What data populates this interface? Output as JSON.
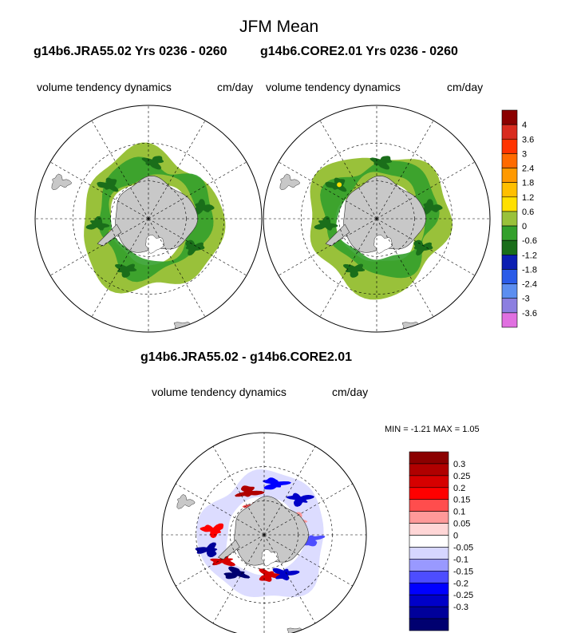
{
  "title": "JFM Mean",
  "left_case": "g14b6.JRA55.02  Yrs 0236 - 0260",
  "right_case": "g14b6.CORE2.01  Yrs 0236 - 0260",
  "panel_variable": "volume tendency dynamics",
  "panel_units": "cm/day",
  "diff_title": "g14b6.JRA55.02 - g14b6.CORE2.01",
  "diff_variable": "volume tendency dynamics",
  "diff_units": "cm/day",
  "diff_minmax": "MIN =  -1.21 MAX =   1.05",
  "colors": {
    "land": "#c8c8c8",
    "ocean": "#ffffff"
  },
  "chart_data": [
    {
      "type": "heatmap",
      "projection": "south-polar-stereographic",
      "name": "g14b6.JRA55.02 Yrs 0236 - 0260",
      "variable": "volume tendency dynamics",
      "units": "cm/day",
      "colorbar": {
        "labels": [
          "4",
          "3.6",
          "3",
          "2.4",
          "1.8",
          "1.2",
          "0.6",
          "0",
          "-0.6",
          "-1.2",
          "-1.8",
          "-2.4",
          "-3",
          "-3.6"
        ],
        "colors": [
          "#8b0000",
          "#d92b1e",
          "#ff3300",
          "#ff6a00",
          "#ff9900",
          "#ffbf00",
          "#ffe000",
          "#99c13a",
          "#33a02c",
          "#1a6e1a",
          "#0c1fb2",
          "#2a5be8",
          "#5c8ef0",
          "#8c7fe0",
          "#e070e0"
        ]
      },
      "dominant_values": "0 to -1.2 around the Antarctic coast and sea-ice edge, locally small positive values"
    },
    {
      "type": "heatmap",
      "projection": "south-polar-stereographic",
      "name": "g14b6.CORE2.01 Yrs 0236 - 0260",
      "variable": "volume tendency dynamics",
      "units": "cm/day",
      "colorbar_shared": true,
      "dominant_values": "0 to -1.2 around the Antarctic coast and sea-ice edge, locally small positive values"
    },
    {
      "type": "heatmap",
      "projection": "south-polar-stereographic",
      "name": "g14b6.JRA55.02 - g14b6.CORE2.01",
      "variable": "volume tendency dynamics",
      "units": "cm/day",
      "min": -1.21,
      "max": 1.05,
      "colorbar": {
        "labels": [
          "0.3",
          "0.25",
          "0.2",
          "0.15",
          "0.1",
          "0.05",
          "0",
          "-0.05",
          "-0.1",
          "-0.15",
          "-0.2",
          "-0.25",
          "-0.3"
        ],
        "colors": [
          "#8b0000",
          "#b00000",
          "#d60000",
          "#ff0000",
          "#ff4d4d",
          "#ff9999",
          "#ffd6d6",
          "#ffffff",
          "#d6d6ff",
          "#9999ff",
          "#4d4dff",
          "#0000ff",
          "#0000c8",
          "#00009a",
          "#000070"
        ]
      }
    }
  ]
}
